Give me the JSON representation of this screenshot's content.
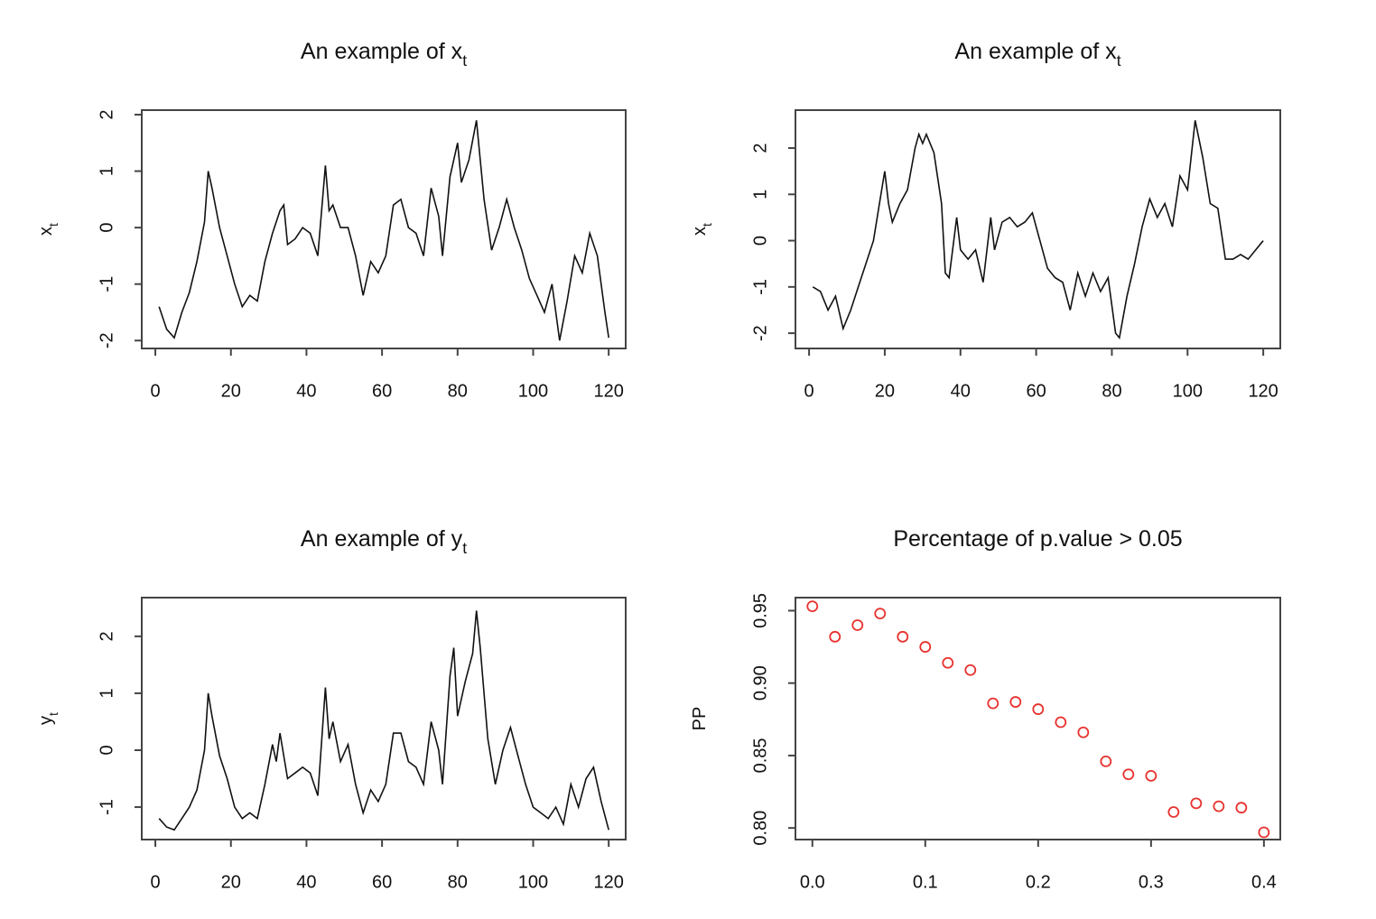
{
  "chart_data": [
    {
      "type": "line",
      "title": "An example of x",
      "title_subscript": "t",
      "ylabel": "x",
      "ylabel_subscript": "t",
      "color": "#111111",
      "x": [
        1,
        3,
        5,
        7,
        9,
        11,
        13,
        14,
        15,
        17,
        19,
        21,
        23,
        25,
        27,
        29,
        31,
        33,
        34,
        35,
        37,
        39,
        41,
        43,
        45,
        46,
        47,
        49,
        51,
        53,
        55,
        57,
        59,
        61,
        63,
        65,
        67,
        69,
        71,
        73,
        75,
        76,
        78,
        80,
        81,
        83,
        85,
        87,
        89,
        91,
        93,
        95,
        97,
        99,
        101,
        103,
        105,
        107,
        109,
        111,
        113,
        115,
        117,
        119,
        120
      ],
      "values": [
        -1.4,
        -1.8,
        -1.95,
        -1.5,
        -1.15,
        -0.6,
        0.1,
        1.0,
        0.7,
        0.0,
        -0.5,
        -1.0,
        -1.4,
        -1.2,
        -1.3,
        -0.6,
        -0.1,
        0.3,
        0.4,
        -0.3,
        -0.2,
        0.0,
        -0.1,
        -0.5,
        1.1,
        0.3,
        0.4,
        0.0,
        0.0,
        -0.5,
        -1.2,
        -0.6,
        -0.8,
        -0.5,
        0.4,
        0.5,
        0.0,
        -0.1,
        -0.5,
        0.7,
        0.2,
        -0.5,
        0.9,
        1.5,
        0.8,
        1.2,
        1.9,
        0.5,
        -0.4,
        0.0,
        0.5,
        0.0,
        -0.4,
        -0.9,
        -1.2,
        -1.5,
        -1.0,
        -2.0,
        -1.3,
        -0.5,
        -0.8,
        -0.1,
        -0.5,
        -1.5,
        -1.95
      ],
      "xlim": [
        -3.6,
        124.5
      ],
      "ylim": [
        -2.14,
        2.08
      ],
      "xticks": [
        0,
        20,
        40,
        60,
        80,
        100,
        120
      ],
      "yticks": [
        -2,
        -1,
        0,
        1,
        2
      ]
    },
    {
      "type": "line",
      "title": "An example of x",
      "title_subscript": "t",
      "ylabel": "x",
      "ylabel_subscript": "t",
      "color": "#111111",
      "x": [
        1,
        3,
        5,
        7,
        9,
        11,
        13,
        15,
        17,
        19,
        20,
        21,
        22,
        24,
        26,
        28,
        29,
        30,
        31,
        33,
        35,
        36,
        37,
        39,
        40,
        42,
        44,
        46,
        48,
        49,
        51,
        53,
        55,
        57,
        59,
        61,
        63,
        65,
        67,
        69,
        71,
        73,
        75,
        77,
        79,
        81,
        82,
        84,
        86,
        88,
        90,
        92,
        94,
        96,
        98,
        100,
        102,
        104,
        106,
        108,
        110,
        112,
        114,
        116,
        118,
        120
      ],
      "values": [
        -1.0,
        -1.1,
        -1.5,
        -1.2,
        -1.9,
        -1.5,
        -1.0,
        -0.5,
        0.0,
        1.0,
        1.5,
        0.8,
        0.4,
        0.8,
        1.1,
        2.0,
        2.3,
        2.1,
        2.3,
        1.9,
        0.8,
        -0.7,
        -0.8,
        0.5,
        -0.2,
        -0.4,
        -0.2,
        -0.9,
        0.5,
        -0.2,
        0.4,
        0.5,
        0.3,
        0.4,
        0.6,
        0.0,
        -0.6,
        -0.8,
        -0.9,
        -1.5,
        -0.7,
        -1.2,
        -0.7,
        -1.1,
        -0.8,
        -2.0,
        -2.1,
        -1.2,
        -0.5,
        0.3,
        0.9,
        0.5,
        0.8,
        0.3,
        1.4,
        1.1,
        2.6,
        1.8,
        0.8,
        0.7,
        -0.4,
        -0.4,
        -0.3,
        -0.4,
        -0.2,
        0.0
      ],
      "xlim": [
        -3.6,
        124.5
      ],
      "ylim": [
        -2.33,
        2.82
      ],
      "xticks": [
        0,
        20,
        40,
        60,
        80,
        100,
        120
      ],
      "yticks": [
        -2,
        -1,
        0,
        1,
        2
      ]
    },
    {
      "type": "line",
      "title": "An example of y",
      "title_subscript": "t",
      "ylabel": "y",
      "ylabel_subscript": "t",
      "color": "#111111",
      "x": [
        1,
        3,
        5,
        7,
        9,
        11,
        13,
        14,
        15,
        17,
        19,
        21,
        23,
        25,
        27,
        29,
        31,
        32,
        33,
        35,
        37,
        39,
        41,
        43,
        45,
        46,
        47,
        49,
        51,
        53,
        55,
        57,
        59,
        61,
        63,
        65,
        67,
        69,
        71,
        73,
        75,
        76,
        78,
        79,
        80,
        82,
        84,
        85,
        86,
        88,
        90,
        92,
        94,
        96,
        98,
        100,
        102,
        104,
        106,
        108,
        110,
        112,
        114,
        116,
        118,
        120
      ],
      "values": [
        -1.2,
        -1.35,
        -1.4,
        -1.2,
        -1.0,
        -0.7,
        0.0,
        1.0,
        0.6,
        -0.1,
        -0.5,
        -1.0,
        -1.2,
        -1.1,
        -1.2,
        -0.6,
        0.1,
        -0.2,
        0.3,
        -0.5,
        -0.4,
        -0.3,
        -0.4,
        -0.8,
        1.1,
        0.2,
        0.5,
        -0.2,
        0.1,
        -0.6,
        -1.1,
        -0.7,
        -0.9,
        -0.6,
        0.3,
        0.3,
        -0.2,
        -0.3,
        -0.6,
        0.5,
        0.0,
        -0.6,
        1.3,
        1.8,
        0.6,
        1.2,
        1.7,
        2.45,
        1.8,
        0.2,
        -0.6,
        0.0,
        0.4,
        -0.1,
        -0.6,
        -1.0,
        -1.1,
        -1.2,
        -1.0,
        -1.3,
        -0.6,
        -1.0,
        -0.5,
        -0.3,
        -0.9,
        -1.4
      ],
      "xlim": [
        -3.6,
        124.5
      ],
      "ylim": [
        -1.57,
        2.68
      ],
      "xticks": [
        0,
        20,
        40,
        60,
        80,
        100,
        120
      ],
      "yticks": [
        -1,
        0,
        1,
        2
      ]
    },
    {
      "type": "scatter",
      "title": "Percentage of p.value > 0.05",
      "ylabel": "PP",
      "color": "#e8322e",
      "x": [
        0,
        0.02,
        0.04,
        0.06,
        0.08,
        0.1,
        0.12,
        0.14,
        0.16,
        0.18,
        0.2,
        0.22,
        0.24,
        0.26,
        0.28,
        0.3,
        0.32,
        0.34,
        0.36,
        0.38,
        0.4
      ],
      "values": [
        0.953,
        0.932,
        0.94,
        0.948,
        0.932,
        0.925,
        0.914,
        0.909,
        0.886,
        0.887,
        0.882,
        0.873,
        0.866,
        0.846,
        0.837,
        0.836,
        0.811,
        0.817,
        0.815,
        0.814,
        0.797
      ],
      "xlim": [
        -0.015,
        0.4145
      ],
      "ylim": [
        0.792,
        0.959
      ],
      "xticks": [
        {
          "value": 0,
          "label": "0.0"
        },
        0.1,
        0.2,
        0.3,
        0.4
      ],
      "yticks": [
        {
          "value": 0.8,
          "label": "0.80"
        },
        0.85,
        {
          "value": 0.9,
          "label": "0.90"
        },
        0.95
      ]
    }
  ]
}
